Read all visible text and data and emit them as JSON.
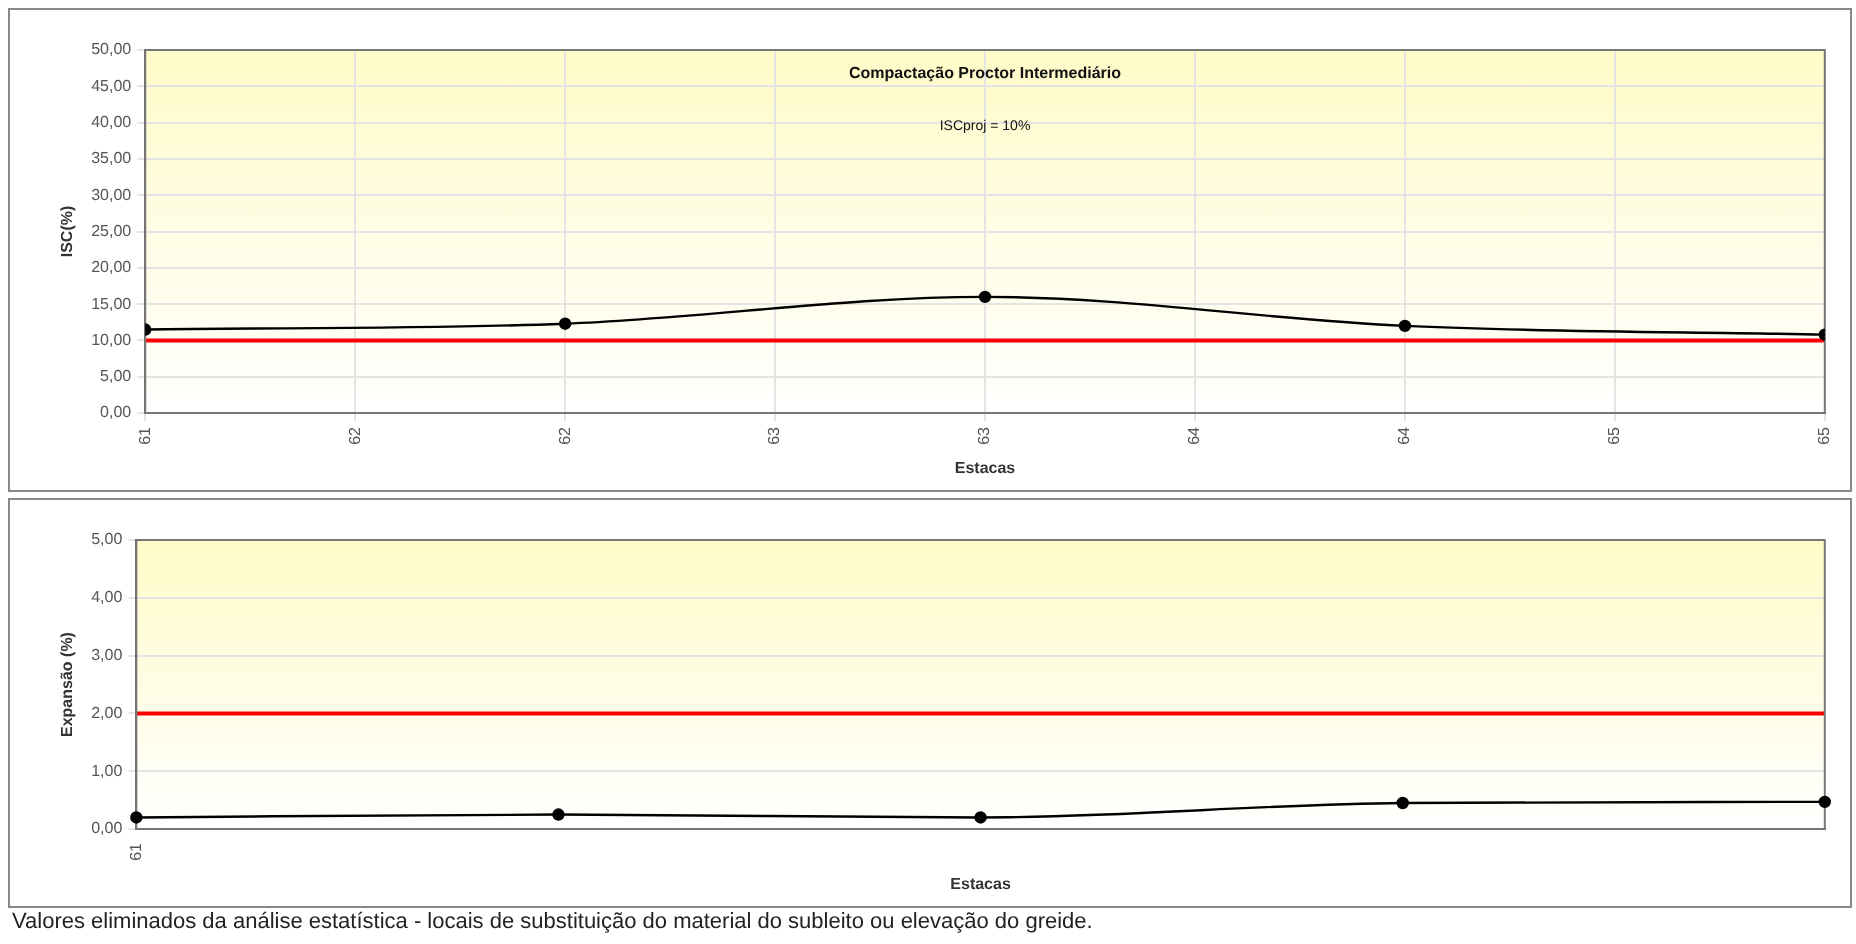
{
  "chart_data": [
    {
      "type": "line",
      "title": "Compactação Proctor Intermediário",
      "xlabel": "Estacas",
      "ylabel": "ISC(%)",
      "annotations": [
        "ISCproj = 10%"
      ],
      "x": [
        61,
        62,
        63,
        64,
        65
      ],
      "series": [
        {
          "color": "#000000",
          "values": [
            11.5,
            12.3,
            16.0,
            12.0,
            10.8
          ]
        }
      ],
      "xlim": [
        61,
        65
      ],
      "xticks": [
        61,
        {
          "value": 61.5,
          "label": "62"
        },
        62,
        {
          "value": 62.5,
          "label": "63"
        },
        63,
        {
          "value": 63.5,
          "label": "64"
        },
        64,
        {
          "value": 64.5,
          "label": "65"
        },
        65
      ],
      "ylim": [
        0,
        50
      ],
      "yticks": [
        {
          "value": 0,
          "label": "0,00"
        },
        {
          "value": 5,
          "label": "5,00"
        },
        {
          "value": 10,
          "label": "10,00"
        },
        {
          "value": 15,
          "label": "15,00"
        },
        {
          "value": 20,
          "label": "20,00"
        },
        {
          "value": 25,
          "label": "25,00"
        },
        {
          "value": 30,
          "label": "30,00"
        },
        {
          "value": 35,
          "label": "35,00"
        },
        {
          "value": 40,
          "label": "40,00"
        },
        {
          "value": 45,
          "label": "45,00"
        },
        {
          "value": 50,
          "label": "50,00"
        }
      ],
      "ref_lines": [
        {
          "axis": "y",
          "value": 10,
          "color": "#ff0000"
        }
      ],
      "grid": true,
      "legend": false,
      "marker": "circle",
      "line_style": "solid"
    },
    {
      "type": "line",
      "xlabel": "Estacas",
      "ylabel": "Expansão (%)",
      "annotations": [
        "Valores eliminados da análise estatística - locais de substituição do material do subleito ou elevação do greide."
      ],
      "categories": [
        "61",
        null,
        null,
        null,
        null
      ],
      "series": [
        {
          "color": "#000000",
          "values": [
            0.2,
            0.25,
            0.2,
            0.45,
            0.47
          ]
        }
      ],
      "ylim": [
        0,
        5
      ],
      "yticks": [
        {
          "value": 0,
          "label": "0,00"
        },
        {
          "value": 1,
          "label": "1,00"
        },
        {
          "value": 2,
          "label": "2,00"
        },
        {
          "value": 3,
          "label": "3,00"
        },
        {
          "value": 4,
          "label": "4,00"
        },
        {
          "value": 5,
          "label": "5,00"
        }
      ],
      "ref_lines": [
        {
          "axis": "y",
          "value": 2,
          "color": "#ff0000"
        }
      ],
      "grid": "y",
      "legend": false,
      "marker": "circle",
      "line_style": "solid"
    }
  ]
}
